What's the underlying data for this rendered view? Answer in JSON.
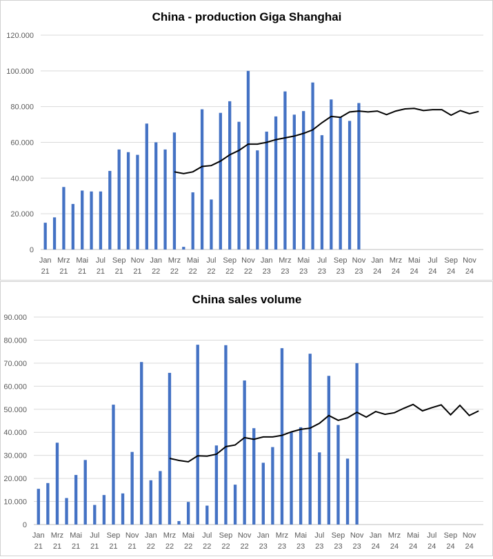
{
  "chart_data": [
    {
      "type": "bar",
      "title": "China - production Giga Shanghai",
      "categories": [
        "Jan 21",
        "Feb 21",
        "Mrz 21",
        "Apr 21",
        "Mai 21",
        "Jun 21",
        "Jul 21",
        "Aug 21",
        "Sep 21",
        "Okt 21",
        "Nov 21",
        "Dez 21",
        "Jan 22",
        "Feb 22",
        "Mrz 22",
        "Apr 22",
        "Mai 22",
        "Jun 22",
        "Jul 22",
        "Aug 22",
        "Sep 22",
        "Okt 22",
        "Nov 22",
        "Dez 22",
        "Jan 23",
        "Feb 23",
        "Mrz 23",
        "Apr 23",
        "Mai 23",
        "Jun 23",
        "Jul 23",
        "Aug 23",
        "Sep 23",
        "Okt 23",
        "Nov 23",
        "Dez 23",
        "Jan 24",
        "Feb 24",
        "Mrz 24",
        "Apr 24",
        "Mai 24",
        "Jun 24",
        "Jul 24",
        "Aug 24",
        "Sep 24",
        "Okt 24",
        "Nov 24",
        "Dez 24"
      ],
      "x_tick_labels": [
        [
          "Jan",
          "21"
        ],
        [
          "Mrz",
          "21"
        ],
        [
          "Mai",
          "21"
        ],
        [
          "Jul",
          "21"
        ],
        [
          "Sep",
          "21"
        ],
        [
          "Nov",
          "21"
        ],
        [
          "Jan",
          "22"
        ],
        [
          "Mrz",
          "22"
        ],
        [
          "Mai",
          "22"
        ],
        [
          "Jul",
          "22"
        ],
        [
          "Sep",
          "22"
        ],
        [
          "Nov",
          "22"
        ],
        [
          "Jan",
          "23"
        ],
        [
          "Mrz",
          "23"
        ],
        [
          "Mai",
          "23"
        ],
        [
          "Jul",
          "23"
        ],
        [
          "Sep",
          "23"
        ],
        [
          "Nov",
          "23"
        ],
        [
          "Jan",
          "24"
        ],
        [
          "Mrz",
          "24"
        ],
        [
          "Mai",
          "24"
        ],
        [
          "Jul",
          "24"
        ],
        [
          "Sep",
          "24"
        ],
        [
          "Nov",
          "24"
        ]
      ],
      "y_ticks": [
        "0",
        "20.000",
        "40.000",
        "60.000",
        "80.000",
        "100.000",
        "120.000"
      ],
      "ylim": [
        0,
        120000
      ],
      "series": [
        {
          "name": "Production",
          "kind": "bar",
          "values": [
            15000,
            18000,
            35000,
            25500,
            33000,
            32500,
            32500,
            44000,
            56000,
            54500,
            53000,
            70500,
            60000,
            56000,
            65500,
            1500,
            32000,
            78500,
            28000,
            76500,
            83000,
            71500,
            100000,
            55500,
            66000,
            74500,
            88500,
            75500,
            77500,
            93500,
            64000,
            84000,
            74000,
            72000,
            82000,
            null,
            null,
            null,
            null,
            null,
            null,
            null,
            null,
            null,
            null,
            null,
            null,
            null
          ]
        },
        {
          "name": "Moving average",
          "kind": "line",
          "values": [
            null,
            null,
            null,
            null,
            null,
            null,
            null,
            null,
            null,
            null,
            null,
            null,
            null,
            null,
            43500,
            42500,
            43500,
            46500,
            47000,
            49500,
            53000,
            55500,
            59000,
            59000,
            60000,
            61500,
            62500,
            63500,
            65000,
            67000,
            71000,
            74500,
            74000,
            77000,
            77500,
            77000,
            77500,
            75500,
            77500,
            78700,
            79000,
            77800,
            78300,
            78300,
            75200,
            77800,
            76000,
            77300
          ]
        }
      ]
    },
    {
      "type": "bar",
      "title": "China sales volume",
      "categories": [
        "Jan 21",
        "Feb 21",
        "Mrz 21",
        "Apr 21",
        "Mai 21",
        "Jun 21",
        "Jul 21",
        "Aug 21",
        "Sep 21",
        "Okt 21",
        "Nov 21",
        "Dez 21",
        "Jan 22",
        "Feb 22",
        "Mrz 22",
        "Apr 22",
        "Mai 22",
        "Jun 22",
        "Jul 22",
        "Aug 22",
        "Sep 22",
        "Okt 22",
        "Nov 22",
        "Dez 22",
        "Jan 23",
        "Feb 23",
        "Mrz 23",
        "Apr 23",
        "Mai 23",
        "Jun 23",
        "Jul 23",
        "Aug 23",
        "Sep 23",
        "Okt 23",
        "Nov 23",
        "Dez 23",
        "Jan 24",
        "Feb 24",
        "Mrz 24",
        "Apr 24",
        "Mai 24",
        "Jun 24",
        "Jul 24",
        "Aug 24",
        "Sep 24",
        "Okt 24",
        "Nov 24",
        "Dez 24"
      ],
      "x_tick_labels": [
        [
          "Jan",
          "21"
        ],
        [
          "Mrz",
          "21"
        ],
        [
          "Mai",
          "21"
        ],
        [
          "Jul",
          "21"
        ],
        [
          "Sep",
          "21"
        ],
        [
          "Nov",
          "21"
        ],
        [
          "Jan",
          "22"
        ],
        [
          "Mrz",
          "22"
        ],
        [
          "Mai",
          "22"
        ],
        [
          "Jul",
          "22"
        ],
        [
          "Sep",
          "22"
        ],
        [
          "Nov",
          "22"
        ],
        [
          "Jan",
          "23"
        ],
        [
          "Mrz",
          "23"
        ],
        [
          "Mai",
          "23"
        ],
        [
          "Jul",
          "23"
        ],
        [
          "Sep",
          "23"
        ],
        [
          "Nov",
          "23"
        ],
        [
          "Jan",
          "24"
        ],
        [
          "Mrz",
          "24"
        ],
        [
          "Mai",
          "24"
        ],
        [
          "Jul",
          "24"
        ],
        [
          "Sep",
          "24"
        ],
        [
          "Nov",
          "24"
        ]
      ],
      "y_ticks": [
        "0",
        "10.000",
        "20.000",
        "30.000",
        "40.000",
        "50.000",
        "60.000",
        "70.000",
        "80.000",
        "90.000"
      ],
      "ylim": [
        0,
        90000
      ],
      "series": [
        {
          "name": "Sales",
          "kind": "bar",
          "values": [
            15500,
            18000,
            35500,
            11500,
            21500,
            28000,
            8500,
            12800,
            52000,
            13500,
            31500,
            70500,
            19200,
            23200,
            65800,
            1500,
            9800,
            78000,
            8200,
            34300,
            77800,
            17300,
            62500,
            41800,
            26800,
            33600,
            76500,
            40000,
            42200,
            74100,
            31300,
            64500,
            43200,
            28600,
            70000,
            null,
            null,
            null,
            null,
            null,
            null,
            null,
            null,
            null,
            null,
            null,
            null,
            null
          ]
        },
        {
          "name": "Moving average",
          "kind": "line",
          "values": [
            null,
            null,
            null,
            null,
            null,
            null,
            null,
            null,
            null,
            null,
            null,
            null,
            null,
            null,
            28700,
            27800,
            27200,
            29800,
            29700,
            30500,
            33800,
            34500,
            37700,
            37000,
            38000,
            38000,
            38700,
            40200,
            41300,
            41800,
            43900,
            47300,
            45200,
            46300,
            48700,
            46600,
            49000,
            47800,
            48500,
            50400,
            52100,
            49300,
            50700,
            51900,
            47600,
            51700,
            47300,
            49300
          ]
        }
      ]
    }
  ]
}
